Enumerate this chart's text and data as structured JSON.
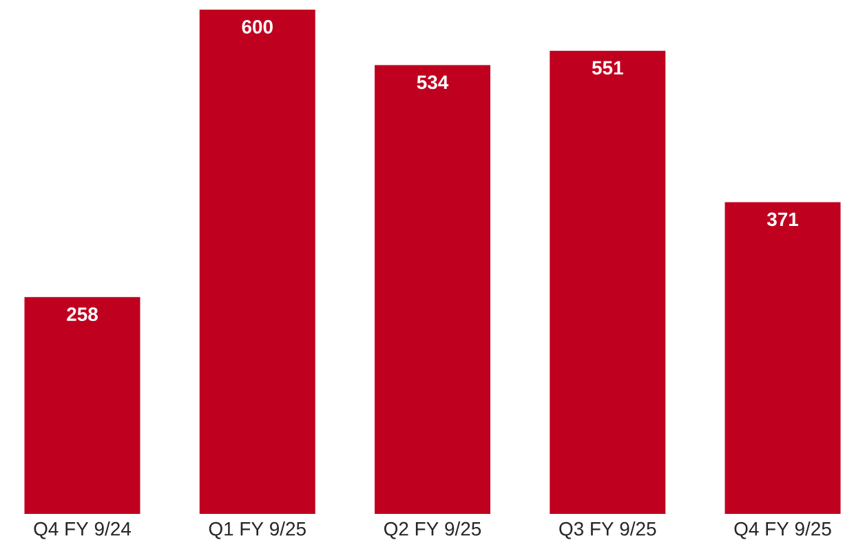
{
  "chart_data": {
    "type": "bar",
    "categories": [
      "Q4 FY 9/24",
      "Q1 FY 9/25",
      "Q2 FY 9/25",
      "Q3 FY 9/25",
      "Q4 FY 9/25"
    ],
    "values": [
      258,
      600,
      534,
      551,
      371
    ],
    "color": "#c0001f",
    "data_labels": true
  }
}
